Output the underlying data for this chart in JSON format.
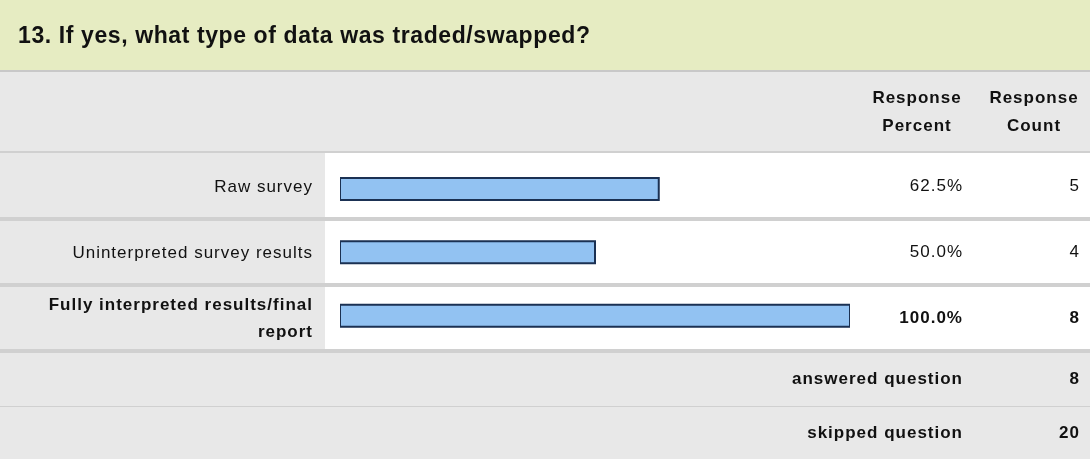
{
  "chart_data": {
    "type": "bar",
    "orientation": "horizontal",
    "title": "13. If yes, what type of data was traded/swapped?",
    "categories": [
      "Raw survey",
      "Uninterpreted survey results",
      "Fully interpreted results/final report"
    ],
    "series": [
      {
        "name": "Response Percent",
        "color": "#92c2f2",
        "values": [
          62.5,
          50.0,
          100.0
        ],
        "value_labels": [
          "62.5%",
          "50.0%",
          "100.0%"
        ]
      }
    ],
    "annotations": [
      "Response Count",
      "5",
      "4",
      "8",
      "answered question",
      "8",
      "skipped question",
      "20"
    ]
  }
}
